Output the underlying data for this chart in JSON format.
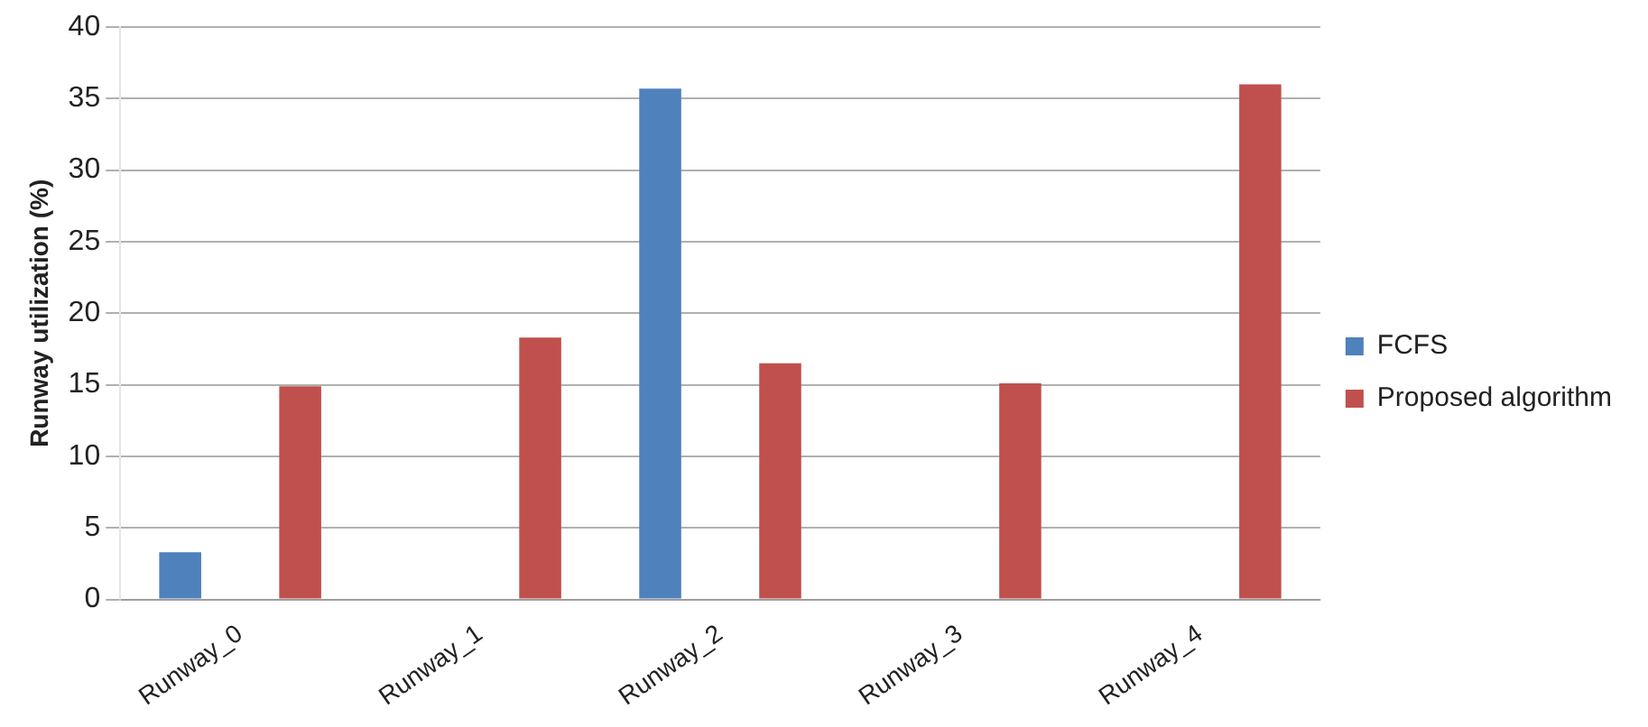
{
  "chart_data": {
    "type": "bar",
    "ylabel": "Runway utilization (%)",
    "categories": [
      "Runway_0",
      "Runway_1",
      "Runway_2",
      "Runway_3",
      "Runway_4"
    ],
    "series": [
      {
        "name": "FCFS",
        "color": "#4f81bd",
        "values": [
          3.3,
          0,
          35.7,
          0,
          0
        ]
      },
      {
        "name": "Proposed algorithm",
        "color": "#c0504d",
        "values": [
          14.9,
          18.3,
          16.5,
          15.1,
          36.0
        ]
      }
    ],
    "ylim": [
      0,
      40
    ],
    "yticks": [
      0,
      5,
      10,
      15,
      20,
      25,
      30,
      35,
      40
    ],
    "grid": "y",
    "legend": "right"
  }
}
